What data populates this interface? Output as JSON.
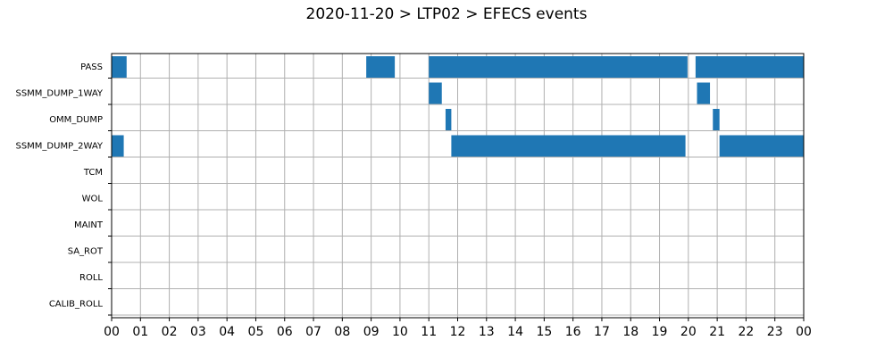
{
  "chart_data": {
    "type": "timeline",
    "title": "2020-11-20 > LTP02 > EFECS events",
    "xlabel": "",
    "ylabel": "",
    "xlim": [
      0,
      24
    ],
    "x_tick_labels": [
      "00",
      "01",
      "02",
      "03",
      "04",
      "05",
      "06",
      "07",
      "08",
      "09",
      "10",
      "11",
      "12",
      "13",
      "14",
      "15",
      "16",
      "17",
      "18",
      "19",
      "20",
      "21",
      "22",
      "23",
      "00"
    ],
    "categories": [
      "PASS",
      "SSMM_DUMP_1WAY",
      "OMM_DUMP",
      "SSMM_DUMP_2WAY",
      "TCM",
      "WOL",
      "MAINT",
      "SA_ROT",
      "ROLL",
      "CALIB_ROLL"
    ],
    "grid": true,
    "bar_color": "#1f77b4",
    "events": [
      {
        "category": "PASS",
        "start": 0.0,
        "end": 0.52
      },
      {
        "category": "PASS",
        "start": 8.83,
        "end": 9.82
      },
      {
        "category": "PASS",
        "start": 11.0,
        "end": 19.97
      },
      {
        "category": "PASS",
        "start": 20.25,
        "end": 24.0
      },
      {
        "category": "SSMM_DUMP_1WAY",
        "start": 11.0,
        "end": 11.45
      },
      {
        "category": "SSMM_DUMP_1WAY",
        "start": 20.3,
        "end": 20.75
      },
      {
        "category": "OMM_DUMP",
        "start": 11.58,
        "end": 11.78
      },
      {
        "category": "OMM_DUMP",
        "start": 20.85,
        "end": 21.08
      },
      {
        "category": "SSMM_DUMP_2WAY",
        "start": 0.0,
        "end": 0.42
      },
      {
        "category": "SSMM_DUMP_2WAY",
        "start": 11.78,
        "end": 19.9
      },
      {
        "category": "SSMM_DUMP_2WAY",
        "start": 21.08,
        "end": 24.0
      }
    ]
  }
}
